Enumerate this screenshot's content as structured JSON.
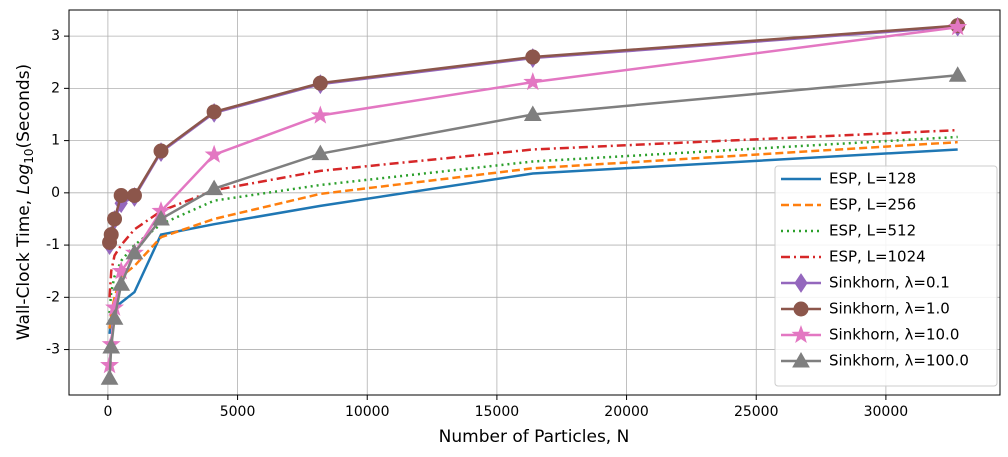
{
  "chart_data": {
    "type": "line",
    "xlabel": "Number of Particles, N",
    "ylabel": [
      "Wall-Clock Time, ",
      "Log",
      "10",
      "(Seconds)"
    ],
    "x": [
      64,
      128,
      256,
      512,
      1024,
      2048,
      4096,
      8192,
      16384,
      32768
    ],
    "xlim": [
      -1500,
      34400
    ],
    "xticks": [
      0,
      5000,
      10000,
      15000,
      20000,
      25000,
      30000
    ],
    "ylim": [
      -3.87,
      3.5
    ],
    "yticks": [
      -3,
      -2,
      -1,
      0,
      1,
      2,
      3
    ],
    "grid": true,
    "legend": "lower right",
    "series": [
      {
        "name": "ESP, L=128",
        "color": "#1f77b4",
        "dash": "solid",
        "marker": "none",
        "values": [
          -2.7,
          -2.4,
          -2.2,
          -2.1,
          -1.9,
          -0.8,
          -0.6,
          -0.25,
          0.37,
          0.83
        ]
      },
      {
        "name": "ESP, L=256",
        "color": "#ff7f0e",
        "dash": "dashed",
        "marker": "none",
        "values": [
          -2.6,
          -2.3,
          -2.0,
          -1.6,
          -1.4,
          -0.85,
          -0.5,
          -0.02,
          0.47,
          0.97
        ]
      },
      {
        "name": "ESP, L=512",
        "color": "#2ca02c",
        "dash": "dotted",
        "marker": "none",
        "values": [
          -2.3,
          -1.9,
          -1.6,
          -1.3,
          -1.0,
          -0.6,
          -0.15,
          0.15,
          0.6,
          1.07
        ]
      },
      {
        "name": "ESP, L=1024",
        "color": "#d62728",
        "dash": "dashdot",
        "marker": "none",
        "values": [
          -2.0,
          -1.5,
          -1.2,
          -1.0,
          -0.7,
          -0.35,
          0.05,
          0.42,
          0.83,
          1.2
        ]
      },
      {
        "name": "Sinkhorn, λ=0.1",
        "color": "#9467bd",
        "dash": "solid",
        "marker": "diamond",
        "values": [
          -1.0,
          -0.82,
          -0.52,
          -0.2,
          -0.08,
          0.78,
          1.53,
          2.08,
          2.58,
          3.18
        ]
      },
      {
        "name": "Sinkhorn, λ=1.0",
        "color": "#8c564b",
        "dash": "solid",
        "marker": "circle",
        "values": [
          -0.95,
          -0.8,
          -0.5,
          -0.05,
          -0.05,
          0.8,
          1.55,
          2.1,
          2.6,
          3.2
        ]
      },
      {
        "name": "Sinkhorn, λ=10.0",
        "color": "#e377c2",
        "dash": "solid",
        "marker": "star",
        "values": [
          -3.3,
          -2.9,
          -2.2,
          -1.5,
          -1.15,
          -0.35,
          0.73,
          1.48,
          2.12,
          3.17
        ]
      },
      {
        "name": "Sinkhorn, λ=100.0",
        "color": "#7f7f7f",
        "dash": "solid",
        "marker": "triangle",
        "values": [
          -3.55,
          -2.95,
          -2.4,
          -1.75,
          -1.15,
          -0.5,
          0.08,
          0.75,
          1.5,
          2.25
        ]
      }
    ]
  }
}
